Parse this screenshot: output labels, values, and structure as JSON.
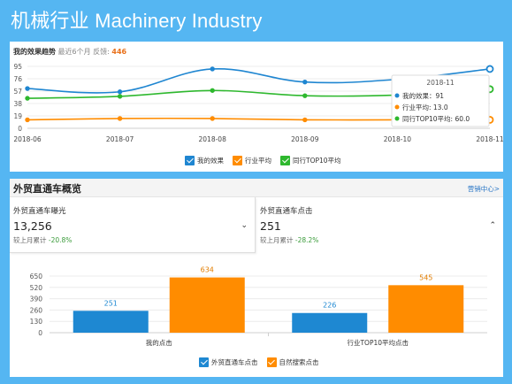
{
  "page": {
    "title": "机械行业 Machinery Industry"
  },
  "trend": {
    "title": "我的效果趋势",
    "subtitle": "最近6个月 反馈:",
    "feedback_count": "446",
    "tooltip": {
      "header": "2018-11",
      "rows": [
        "我的效果：91",
        "行业平均: 13.0",
        "同行TOP10平均: 60.0"
      ]
    },
    "legend": [
      "我的效果",
      "行业平均",
      "同行TOP10平均"
    ]
  },
  "overview": {
    "title": "外贸直通车概览",
    "link": "营销中心>",
    "cards": [
      {
        "label": "外贸直通车曝光",
        "value": "13,256",
        "compare_prefix": "较上月累计",
        "compare_value": "-20.8%",
        "chevron": "⌄"
      },
      {
        "label": "外贸直通车点击",
        "value": "251",
        "compare_prefix": "较上月累计",
        "compare_value": "-28.2%",
        "chevron": "⌃"
      }
    ],
    "legend": [
      "外贸直通车点击",
      "自然搜索点击"
    ]
  },
  "colors": {
    "blue": "#1f86d1",
    "orange": "#ff8c00",
    "green": "#2eb82e",
    "bar_blue": "#1e88d2",
    "bar_orange": "#ff8c00"
  },
  "chart_data": [
    {
      "type": "line",
      "x": [
        "2018-06",
        "2018-07",
        "2018-08",
        "2018-09",
        "2018-10",
        "2018-11"
      ],
      "y_ticks": [
        0,
        19,
        38,
        57,
        76,
        95
      ],
      "ylim": [
        0,
        95
      ],
      "series": [
        {
          "name": "我的效果",
          "values": [
            61,
            56,
            91,
            71,
            75,
            91
          ]
        },
        {
          "name": "行业平均",
          "values": [
            13,
            15,
            15,
            13,
            13,
            13
          ]
        },
        {
          "name": "同行TOP10平均",
          "values": [
            46,
            49,
            58,
            50,
            51,
            60
          ]
        }
      ]
    },
    {
      "type": "bar",
      "categories": [
        "我的点击",
        "行业TOP10平均点击"
      ],
      "y_ticks": [
        0,
        130,
        260,
        390,
        520,
        650
      ],
      "ylim": [
        0,
        650
      ],
      "series": [
        {
          "name": "外贸直通车点击",
          "values": [
            251,
            226
          ]
        },
        {
          "name": "自然搜索点击",
          "values": [
            634,
            545
          ]
        }
      ]
    }
  ]
}
